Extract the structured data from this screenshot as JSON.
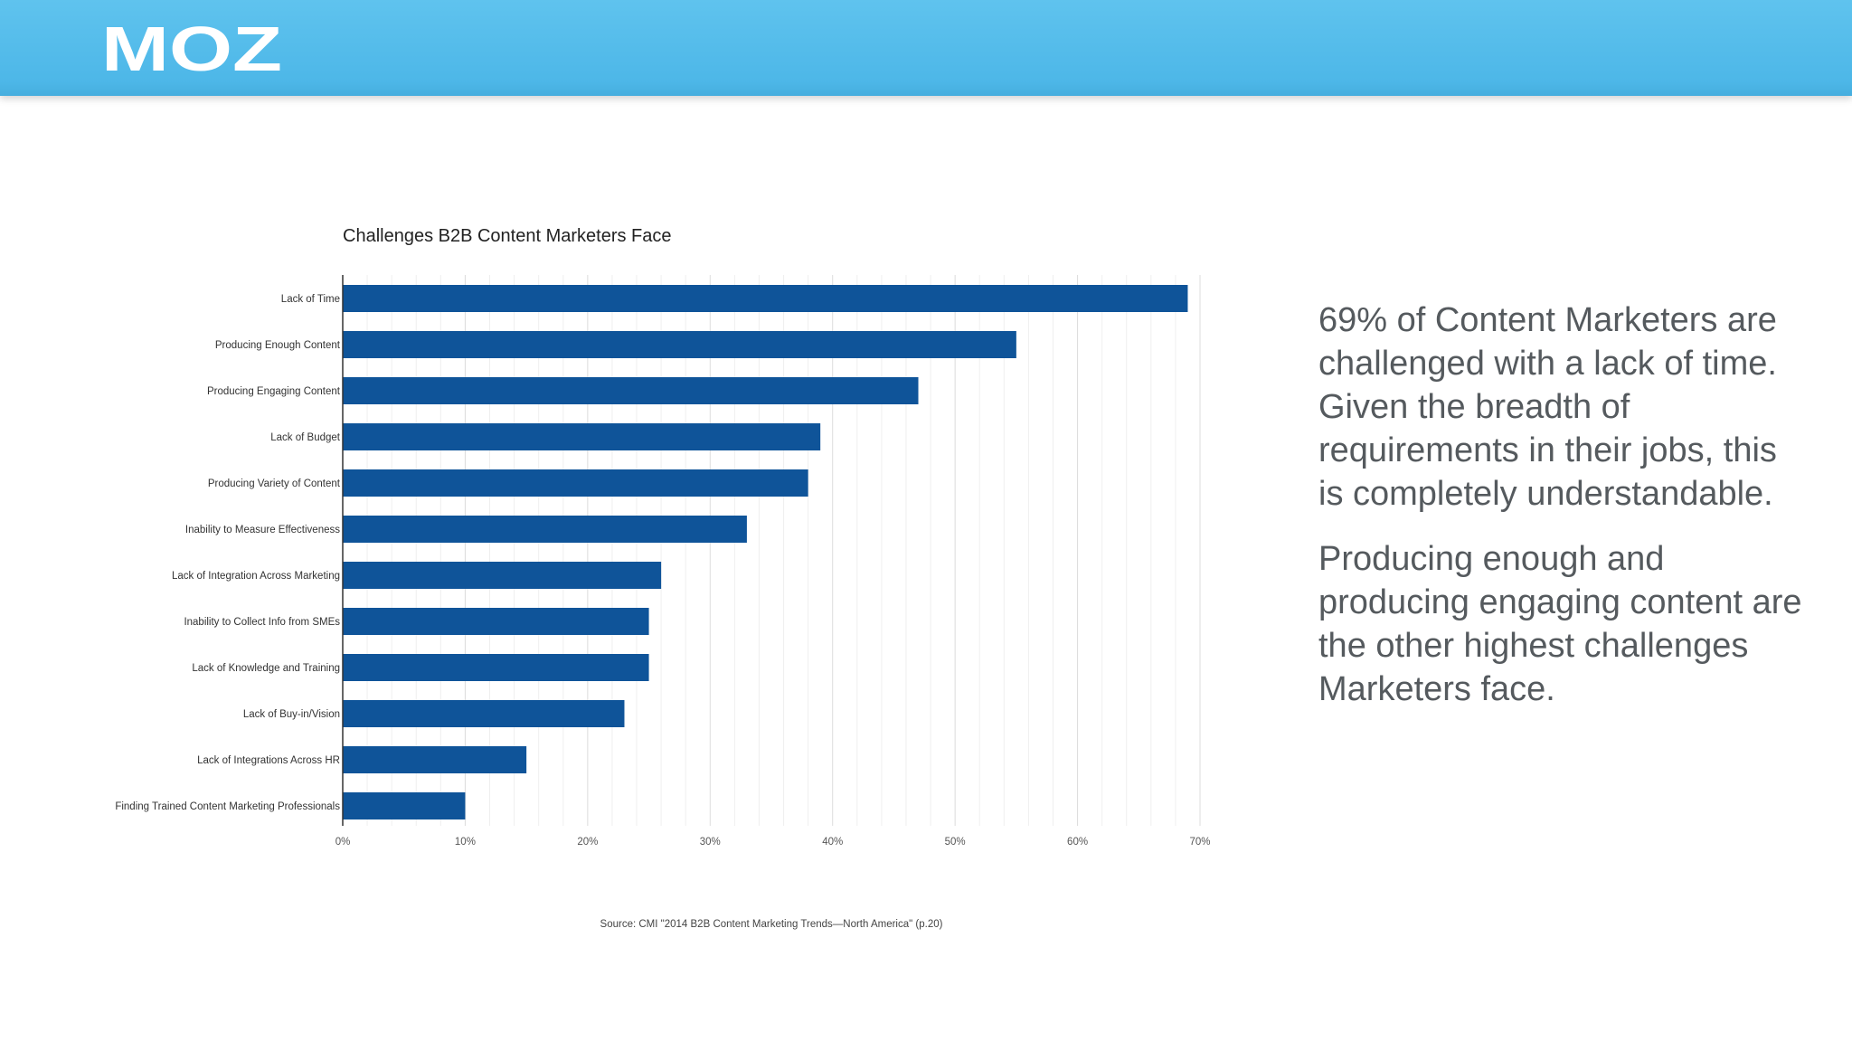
{
  "brand": {
    "logo_text": "MOZ",
    "header_color": "#55bdec",
    "logo_color": "#ffffff"
  },
  "chart_data": {
    "type": "bar",
    "orientation": "horizontal",
    "title": "Challenges B2B Content Marketers Face",
    "categories": [
      "Lack of Time",
      "Producing Enough Content",
      "Producing Engaging Content",
      "Lack of Budget",
      "Producing Variety of Content",
      "Inability to Measure Effectiveness",
      "Lack of Integration Across Marketing",
      "Inability to Collect Info from SMEs",
      "Lack of Knowledge and Training",
      "Lack of Buy-in/Vision",
      "Lack of Integrations Across HR",
      "Finding Trained Content Marketing Professionals"
    ],
    "values": [
      69,
      55,
      47,
      39,
      38,
      33,
      26,
      25,
      25,
      23,
      15,
      10
    ],
    "xlim": [
      0,
      70
    ],
    "xticks": [
      "0%",
      "10%",
      "20%",
      "30%",
      "40%",
      "50%",
      "60%",
      "70%"
    ],
    "grid": true,
    "bar_color": "#0f5499",
    "source": "Source: CMI \"2014 B2B Content Marketing Trends—North America\" (p.20)"
  },
  "commentary": {
    "paragraph_1": "69% of Content Marketers are challenged with a lack of time. Given the breadth of requirements in their jobs, this is completely understandable.",
    "paragraph_2": "Producing enough and producing engaging content are the other highest challenges Marketers face."
  }
}
